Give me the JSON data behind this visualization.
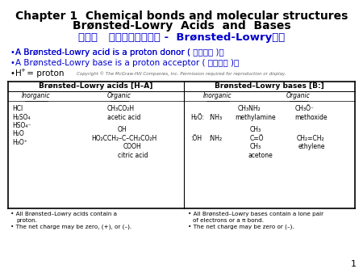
{
  "title_line1": "Chapter 1  Chemical bonds and molecular structures",
  "title_line2": "Brønsted-Lowry  Acids  and  Bases",
  "title_chinese": "第一章   化学键与分子结构 -  Brønsted-Lowry酸简",
  "bullet1_pre": "A Brønsted-Lowry acid is a proton donor（",
  "bullet1_cn": "质子给体",
  "bullet1_post": "）.",
  "bullet2_pre": "A Brønsted-Lowry base is a proton acceptor（",
  "bullet2_cn": "质子受体",
  "bullet2_post": "）.",
  "copyright": "Copyright © The McGraw-Hill Companies, Inc. Permission required for reproduction or display.",
  "table_header_left": "Brønsted–Lowry acids [H–A]",
  "table_header_right": "Brønsted–Lowry bases [B:]",
  "col_inorganic_left": "Inorganic",
  "col_organic_left": "Organic",
  "col_inorganic_right": "Inorganic",
  "col_organic_right": "Organic",
  "footnote_left1": "All Brønsted–Lowry acids contain a",
  "footnote_left1b": "proton.",
  "footnote_left2": "The net charge may be zero, (+), or (–).",
  "footnote_right1": "All Brønsted–Lowry bases contain a lone pair",
  "footnote_right1b": "of electrons or a π bond.",
  "footnote_right2": "The net charge may be zero or (–).",
  "page_number": "1",
  "title_color": "#000000",
  "chinese_color": "#0000CC",
  "bullet_color": "#0000CC",
  "bg_color": "#ffffff"
}
